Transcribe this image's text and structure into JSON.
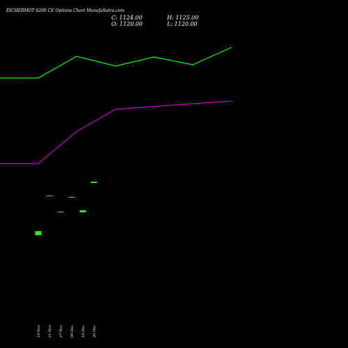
{
  "header": {
    "title": "EICHERMOT 6200  CE Options  Chart MunafaSutra.com",
    "close": "C: 1124.00",
    "high": "H: 1125.00",
    "open": "O: 1120.00",
    "low": "L: 1120.00"
  },
  "colors": {
    "background": "#000000",
    "price_line": "#00ff00",
    "ma_line": "#cc00cc",
    "candle": "#22ee22",
    "text": "#ffffff"
  },
  "chart_data": {
    "type": "candlestick",
    "x_tick_labels": [
      "19 Nov",
      "21 Nov",
      "27 Nov",
      "09 Dec",
      "18 Dec",
      "26 Dec"
    ],
    "series": [
      {
        "type": "line",
        "color": "#00ff00",
        "values": [
          112,
          112,
          81,
          95,
          82,
          93,
          68
        ]
      },
      {
        "type": "line",
        "color": "#cc00cc",
        "values": [
          235,
          235,
          189,
          157,
          153,
          149,
          145
        ]
      },
      {
        "type": "candles",
        "color": "#22ee22",
        "values": [
          {
            "x": "19 Nov",
            "open": 332,
            "close": 338
          },
          {
            "x": "21 Nov",
            "open": 281,
            "close": 282
          },
          {
            "x": "27 Nov",
            "open": 304,
            "close": 305
          },
          {
            "x": "09 Dec",
            "open": 283,
            "close": 284
          },
          {
            "x": "18 Dec",
            "open": 302,
            "close": 305
          },
          {
            "x": "26 Dec",
            "open": 261,
            "close": 263
          }
        ]
      }
    ]
  }
}
